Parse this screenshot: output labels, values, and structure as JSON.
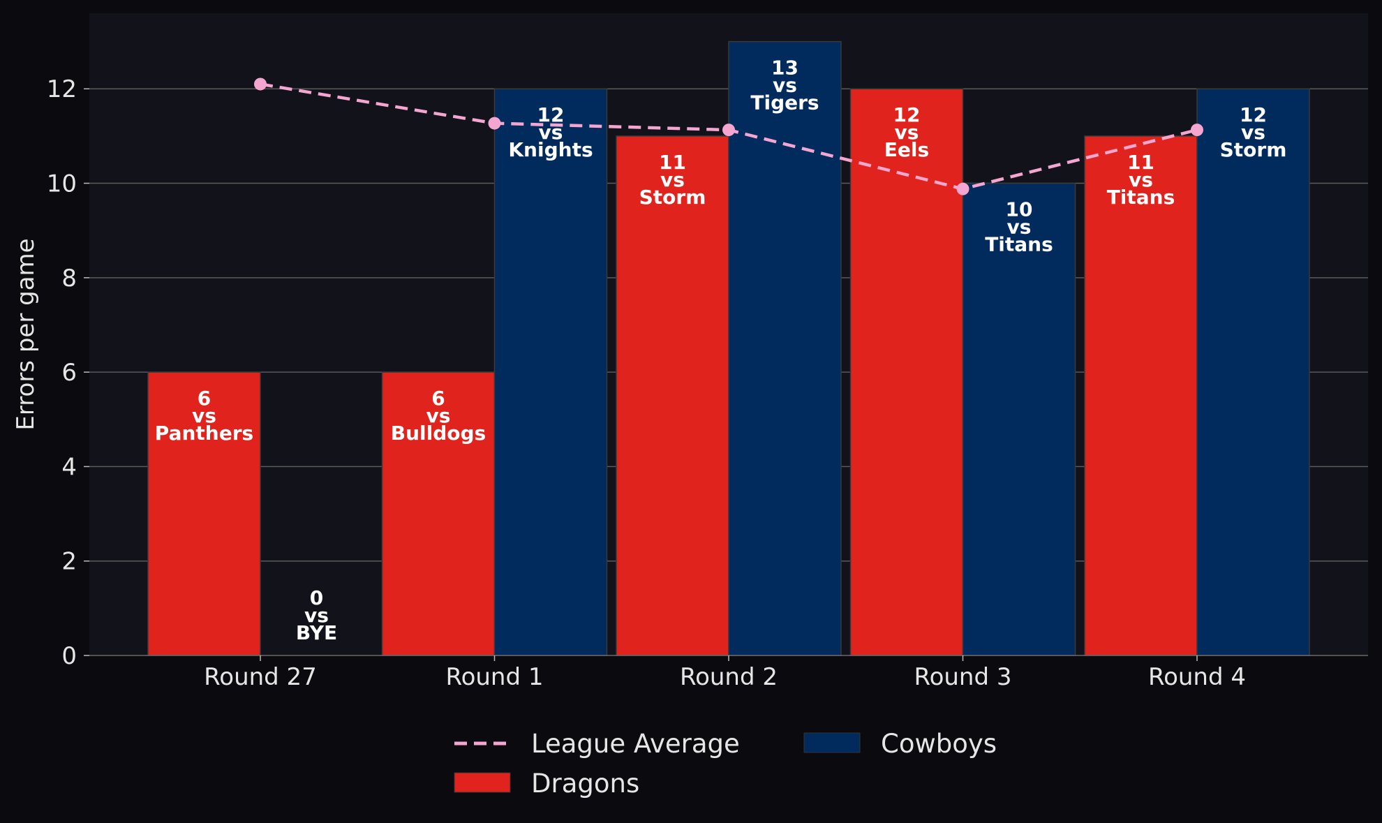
{
  "chart_data": {
    "type": "bar",
    "title": "",
    "xlabel": "",
    "ylabel": "Errors per game",
    "ylim": [
      0,
      13.6
    ],
    "yticks": [
      0,
      2,
      4,
      6,
      8,
      10,
      12
    ],
    "categories": [
      "Round 27",
      "Round 1",
      "Round 2",
      "Round 3",
      "Round 4"
    ],
    "series": [
      {
        "name": "Dragons",
        "color": "#e0231c",
        "values": [
          6,
          6,
          11,
          12,
          11
        ],
        "opponents": [
          "Panthers",
          "Bulldogs",
          "Storm",
          "Eels",
          "Titans"
        ]
      },
      {
        "name": "Cowboys",
        "color": "#002b5c",
        "values": [
          0,
          12,
          13,
          10,
          12
        ],
        "opponents": [
          "BYE",
          "Knights",
          "Tigers",
          "Titans",
          "Storm"
        ]
      }
    ],
    "line_series": {
      "name": "League Average",
      "color": "#f4a6d0",
      "style": "dashed",
      "values": [
        12.1,
        11.27,
        11.13,
        9.88,
        11.13
      ]
    },
    "vs_text": "vs",
    "grid": true,
    "legend_placement": "bottom-center",
    "legend": [
      "League Average",
      "Dragons",
      "Cowboys"
    ]
  },
  "colors": {
    "page_background": "#0b0b0f",
    "plot_background": "#12131a",
    "grid": "#5a5a5a",
    "text": "#e6e6e6"
  }
}
